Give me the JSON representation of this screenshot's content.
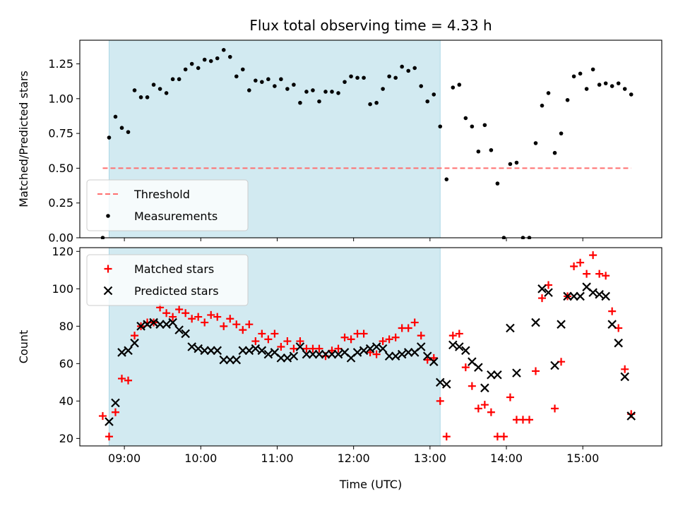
{
  "chart_data": [
    {
      "type": "scatter",
      "title": "Flux total observing time = 4.33 h",
      "xlabel": "",
      "ylabel": "Matched/Predicted stars",
      "xlim": [
        "08:25",
        "16:02"
      ],
      "ylim": [
        0,
        1.42
      ],
      "yticks": [
        "0.00",
        "0.25",
        "0.50",
        "0.75",
        "1.00",
        "1.25"
      ],
      "highlight_span": [
        "08:48",
        "13:08"
      ],
      "threshold": {
        "name": "Threshold",
        "value": 0.5,
        "x_from": "08:43",
        "x_to": "15:38",
        "color": "#ff6f6f",
        "style": "dashed"
      },
      "legend": {
        "placement": "lower-left",
        "entries": [
          "Threshold",
          "Measurements"
        ]
      },
      "series": [
        {
          "name": "Measurements",
          "marker": "dot",
          "color": "#000000",
          "points": [
            [
              "08:43",
              0.0
            ],
            [
              "08:48",
              0.72
            ],
            [
              "08:53",
              0.87
            ],
            [
              "08:58",
              0.79
            ],
            [
              "09:03",
              0.76
            ],
            [
              "09:08",
              1.06
            ],
            [
              "09:13",
              1.01
            ],
            [
              "09:18",
              1.01
            ],
            [
              "09:23",
              1.1
            ],
            [
              "09:28",
              1.07
            ],
            [
              "09:33",
              1.04
            ],
            [
              "09:38",
              1.14
            ],
            [
              "09:43",
              1.14
            ],
            [
              "09:48",
              1.21
            ],
            [
              "09:53",
              1.25
            ],
            [
              "09:58",
              1.22
            ],
            [
              "10:03",
              1.28
            ],
            [
              "10:08",
              1.27
            ],
            [
              "10:13",
              1.29
            ],
            [
              "10:18",
              1.35
            ],
            [
              "10:23",
              1.3
            ],
            [
              "10:28",
              1.16
            ],
            [
              "10:33",
              1.21
            ],
            [
              "10:38",
              1.06
            ],
            [
              "10:43",
              1.13
            ],
            [
              "10:48",
              1.12
            ],
            [
              "10:53",
              1.14
            ],
            [
              "10:58",
              1.09
            ],
            [
              "11:03",
              1.14
            ],
            [
              "11:08",
              1.07
            ],
            [
              "11:13",
              1.1
            ],
            [
              "11:18",
              0.97
            ],
            [
              "11:23",
              1.05
            ],
            [
              "11:28",
              1.06
            ],
            [
              "11:33",
              0.98
            ],
            [
              "11:38",
              1.05
            ],
            [
              "11:43",
              1.05
            ],
            [
              "11:48",
              1.04
            ],
            [
              "11:53",
              1.12
            ],
            [
              "11:58",
              1.16
            ],
            [
              "12:03",
              1.15
            ],
            [
              "12:08",
              1.15
            ],
            [
              "12:13",
              0.96
            ],
            [
              "12:18",
              0.97
            ],
            [
              "12:23",
              1.07
            ],
            [
              "12:28",
              1.16
            ],
            [
              "12:33",
              1.15
            ],
            [
              "12:38",
              1.23
            ],
            [
              "12:43",
              1.2
            ],
            [
              "12:48",
              1.22
            ],
            [
              "12:53",
              1.09
            ],
            [
              "12:58",
              0.98
            ],
            [
              "13:03",
              1.03
            ],
            [
              "13:08",
              0.8
            ],
            [
              "13:13",
              0.42
            ],
            [
              "13:18",
              1.08
            ],
            [
              "13:23",
              1.1
            ],
            [
              "13:28",
              0.86
            ],
            [
              "13:33",
              0.8
            ],
            [
              "13:38",
              0.62
            ],
            [
              "13:43",
              0.81
            ],
            [
              "13:48",
              0.63
            ],
            [
              "13:53",
              0.39
            ],
            [
              "13:58",
              0.0
            ],
            [
              "14:03",
              0.53
            ],
            [
              "14:08",
              0.54
            ],
            [
              "14:13",
              0.0
            ],
            [
              "14:18",
              0.0
            ],
            [
              "14:23",
              0.68
            ],
            [
              "14:28",
              0.95
            ],
            [
              "14:33",
              1.04
            ],
            [
              "14:38",
              0.61
            ],
            [
              "14:43",
              0.75
            ],
            [
              "14:48",
              0.99
            ],
            [
              "14:53",
              1.16
            ],
            [
              "14:58",
              1.18
            ],
            [
              "15:03",
              1.07
            ],
            [
              "15:08",
              1.21
            ],
            [
              "15:13",
              1.1
            ],
            [
              "15:18",
              1.11
            ],
            [
              "15:23",
              1.09
            ],
            [
              "15:28",
              1.11
            ],
            [
              "15:33",
              1.07
            ],
            [
              "15:38",
              1.03
            ]
          ]
        }
      ]
    },
    {
      "type": "scatter",
      "title": "",
      "xlabel": "Time (UTC)",
      "ylabel": "Count",
      "xlim": [
        "08:25",
        "16:02"
      ],
      "ylim": [
        16,
        122
      ],
      "yticks": [
        "20",
        "40",
        "60",
        "80",
        "100",
        "120"
      ],
      "xticks": [
        "09:00",
        "10:00",
        "11:00",
        "12:00",
        "13:00",
        "14:00",
        "15:00"
      ],
      "highlight_span": [
        "08:48",
        "13:08"
      ],
      "legend": {
        "placement": "top-left",
        "entries": [
          "Matched stars",
          "Predicted stars"
        ]
      },
      "series": [
        {
          "name": "Matched stars",
          "marker": "plus",
          "color": "#ff0000",
          "points": [
            [
              "08:43",
              32
            ],
            [
              "08:48",
              21
            ],
            [
              "08:53",
              34
            ],
            [
              "08:58",
              52
            ],
            [
              "09:03",
              51
            ],
            [
              "09:08",
              75
            ],
            [
              "09:13",
              80
            ],
            [
              "09:18",
              82
            ],
            [
              "09:23",
              82
            ],
            [
              "09:28",
              90
            ],
            [
              "09:33",
              87
            ],
            [
              "09:38",
              85
            ],
            [
              "09:43",
              89
            ],
            [
              "09:48",
              87
            ],
            [
              "09:53",
              84
            ],
            [
              "09:58",
              85
            ],
            [
              "10:03",
              82
            ],
            [
              "10:08",
              86
            ],
            [
              "10:13",
              85
            ],
            [
              "10:18",
              80
            ],
            [
              "10:23",
              84
            ],
            [
              "10:28",
              81
            ],
            [
              "10:33",
              78
            ],
            [
              "10:38",
              81
            ],
            [
              "10:43",
              72
            ],
            [
              "10:48",
              76
            ],
            [
              "10:53",
              73
            ],
            [
              "10:58",
              76
            ],
            [
              "11:03",
              69
            ],
            [
              "11:08",
              72
            ],
            [
              "11:13",
              68
            ],
            [
              "11:18",
              72
            ],
            [
              "11:23",
              68
            ],
            [
              "11:28",
              68
            ],
            [
              "11:33",
              68
            ],
            [
              "11:38",
              64
            ],
            [
              "11:43",
              67
            ],
            [
              "11:48",
              68
            ],
            [
              "11:53",
              74
            ],
            [
              "11:58",
              73
            ],
            [
              "12:03",
              76
            ],
            [
              "12:08",
              76
            ],
            [
              "12:13",
              66
            ],
            [
              "12:18",
              65
            ],
            [
              "12:23",
              72
            ],
            [
              "12:28",
              73
            ],
            [
              "12:33",
              74
            ],
            [
              "12:38",
              79
            ],
            [
              "12:43",
              79
            ],
            [
              "12:48",
              82
            ],
            [
              "12:53",
              75
            ],
            [
              "12:58",
              62
            ],
            [
              "13:03",
              63
            ],
            [
              "13:08",
              40
            ],
            [
              "13:13",
              21
            ],
            [
              "13:18",
              75
            ],
            [
              "13:23",
              76
            ],
            [
              "13:28",
              58
            ],
            [
              "13:33",
              48
            ],
            [
              "13:38",
              36
            ],
            [
              "13:43",
              38
            ],
            [
              "13:48",
              34
            ],
            [
              "13:53",
              21
            ],
            [
              "13:58",
              21
            ],
            [
              "14:03",
              42
            ],
            [
              "14:08",
              30
            ],
            [
              "14:13",
              30
            ],
            [
              "14:18",
              30
            ],
            [
              "14:23",
              56
            ],
            [
              "14:28",
              95
            ],
            [
              "14:33",
              102
            ],
            [
              "14:38",
              36
            ],
            [
              "14:43",
              61
            ],
            [
              "14:48",
              96
            ],
            [
              "14:53",
              112
            ],
            [
              "14:58",
              114
            ],
            [
              "15:03",
              108
            ],
            [
              "15:08",
              118
            ],
            [
              "15:13",
              108
            ],
            [
              "15:18",
              107
            ],
            [
              "15:23",
              88
            ],
            [
              "15:28",
              79
            ],
            [
              "15:33",
              57
            ],
            [
              "15:38",
              33
            ]
          ]
        },
        {
          "name": "Predicted stars",
          "marker": "x",
          "color": "#000000",
          "points": [
            [
              "08:48",
              29
            ],
            [
              "08:53",
              39
            ],
            [
              "08:58",
              66
            ],
            [
              "09:03",
              67
            ],
            [
              "09:08",
              71
            ],
            [
              "09:13",
              80
            ],
            [
              "09:18",
              81
            ],
            [
              "09:23",
              82
            ],
            [
              "09:28",
              81
            ],
            [
              "09:33",
              81
            ],
            [
              "09:38",
              82
            ],
            [
              "09:43",
              78
            ],
            [
              "09:48",
              76
            ],
            [
              "09:53",
              69
            ],
            [
              "09:58",
              68
            ],
            [
              "10:03",
              67
            ],
            [
              "10:08",
              67
            ],
            [
              "10:13",
              67
            ],
            [
              "10:18",
              62
            ],
            [
              "10:23",
              62
            ],
            [
              "10:28",
              62
            ],
            [
              "10:33",
              67
            ],
            [
              "10:38",
              67
            ],
            [
              "10:43",
              68
            ],
            [
              "10:48",
              67
            ],
            [
              "10:53",
              65
            ],
            [
              "10:58",
              66
            ],
            [
              "11:03",
              63
            ],
            [
              "11:08",
              63
            ],
            [
              "11:13",
              64
            ],
            [
              "11:18",
              69
            ],
            [
              "11:23",
              65
            ],
            [
              "11:28",
              65
            ],
            [
              "11:33",
              65
            ],
            [
              "11:38",
              65
            ],
            [
              "11:43",
              65
            ],
            [
              "11:48",
              65
            ],
            [
              "11:53",
              66
            ],
            [
              "11:58",
              63
            ],
            [
              "12:03",
              66
            ],
            [
              "12:08",
              67
            ],
            [
              "12:13",
              68
            ],
            [
              "12:18",
              69
            ],
            [
              "12:23",
              68
            ],
            [
              "12:28",
              64
            ],
            [
              "12:33",
              64
            ],
            [
              "12:38",
              65
            ],
            [
              "12:43",
              66
            ],
            [
              "12:48",
              66
            ],
            [
              "12:53",
              69
            ],
            [
              "12:58",
              64
            ],
            [
              "13:03",
              61
            ],
            [
              "13:08",
              50
            ],
            [
              "13:13",
              49
            ],
            [
              "13:18",
              70
            ],
            [
              "13:23",
              69
            ],
            [
              "13:28",
              67
            ],
            [
              "13:33",
              61
            ],
            [
              "13:38",
              58
            ],
            [
              "13:43",
              47
            ],
            [
              "13:48",
              54
            ],
            [
              "13:53",
              54
            ],
            [
              "14:03",
              79
            ],
            [
              "14:08",
              55
            ],
            [
              "14:23",
              82
            ],
            [
              "14:28",
              100
            ],
            [
              "14:33",
              98
            ],
            [
              "14:38",
              59
            ],
            [
              "14:43",
              81
            ],
            [
              "14:48",
              96
            ],
            [
              "14:53",
              96
            ],
            [
              "14:58",
              96
            ],
            [
              "15:03",
              101
            ],
            [
              "15:08",
              98
            ],
            [
              "15:13",
              97
            ],
            [
              "15:18",
              96
            ],
            [
              "15:23",
              81
            ],
            [
              "15:28",
              71
            ],
            [
              "15:33",
              53
            ],
            [
              "15:38",
              32
            ]
          ]
        }
      ]
    }
  ]
}
